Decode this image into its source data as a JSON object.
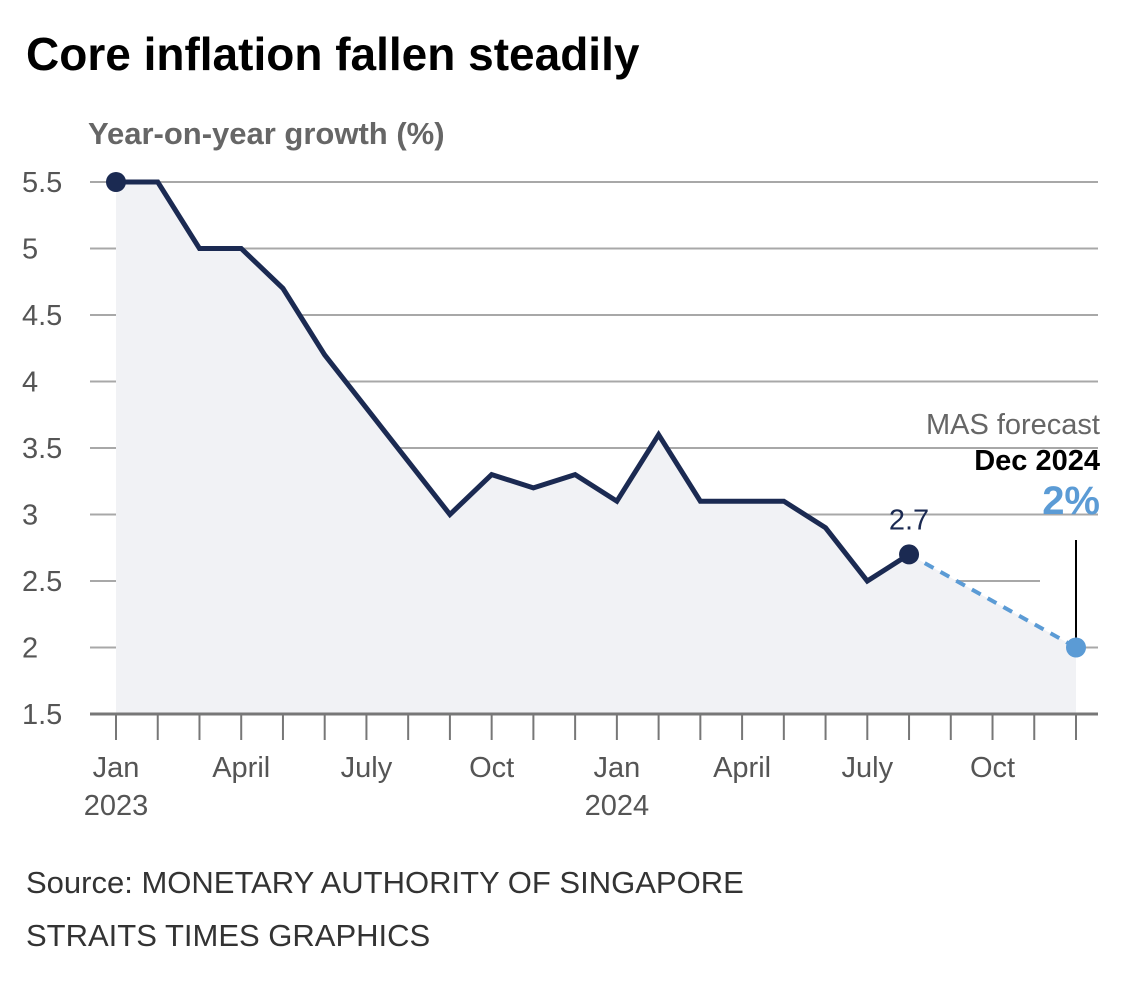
{
  "chart_data": {
    "type": "line",
    "title": "Core inflation fallen steadily",
    "ylabel": "Year-on-year growth (%)",
    "ylim": [
      1.5,
      5.5
    ],
    "yticks": [
      "5.5",
      "5",
      "4.5",
      "4",
      "3.5",
      "3",
      "2.5",
      "2",
      "1.5"
    ],
    "grid": true,
    "x": [
      "2023-01",
      "2023-02",
      "2023-03",
      "2023-04",
      "2023-05",
      "2023-06",
      "2023-07",
      "2023-08",
      "2023-09",
      "2023-10",
      "2023-11",
      "2023-12",
      "2024-01",
      "2024-02",
      "2024-03",
      "2024-04",
      "2024-05",
      "2024-06",
      "2024-07",
      "2024-08"
    ],
    "xlim": [
      "2023-01",
      "2024-12"
    ],
    "xtick_labels": [
      {
        "month": "2023-01",
        "label": "Jan",
        "year": "2023"
      },
      {
        "month": "2023-04",
        "label": "April"
      },
      {
        "month": "2023-07",
        "label": "July"
      },
      {
        "month": "2023-10",
        "label": "Oct"
      },
      {
        "month": "2024-01",
        "label": "Jan",
        "year": "2024"
      },
      {
        "month": "2024-04",
        "label": "April"
      },
      {
        "month": "2024-07",
        "label": "July"
      },
      {
        "month": "2024-10",
        "label": "Oct"
      }
    ],
    "series": [
      {
        "values": [
          5.5,
          5.5,
          5.0,
          5.0,
          4.7,
          4.2,
          3.8,
          3.4,
          3.0,
          3.3,
          3.2,
          3.3,
          3.1,
          3.6,
          3.1,
          3.1,
          3.1,
          2.9,
          2.5,
          2.7
        ],
        "color": "#1b2a52"
      }
    ],
    "forecast": {
      "from": {
        "x": "2024-08",
        "y": 2.7
      },
      "to": {
        "x": "2024-12",
        "y": 2.0
      },
      "color": "#5b9bd5",
      "style": "dashed"
    },
    "annotations": {
      "last_value": "2.7",
      "forecast_label": "MAS forecast",
      "forecast_date": "Dec 2024",
      "forecast_value": "2%"
    },
    "fill_color": "#f1f2f5"
  },
  "footer": {
    "source": "Source: MONETARY AUTHORITY OF SINGAPORE",
    "credit": "STRAITS TIMES GRAPHICS"
  }
}
